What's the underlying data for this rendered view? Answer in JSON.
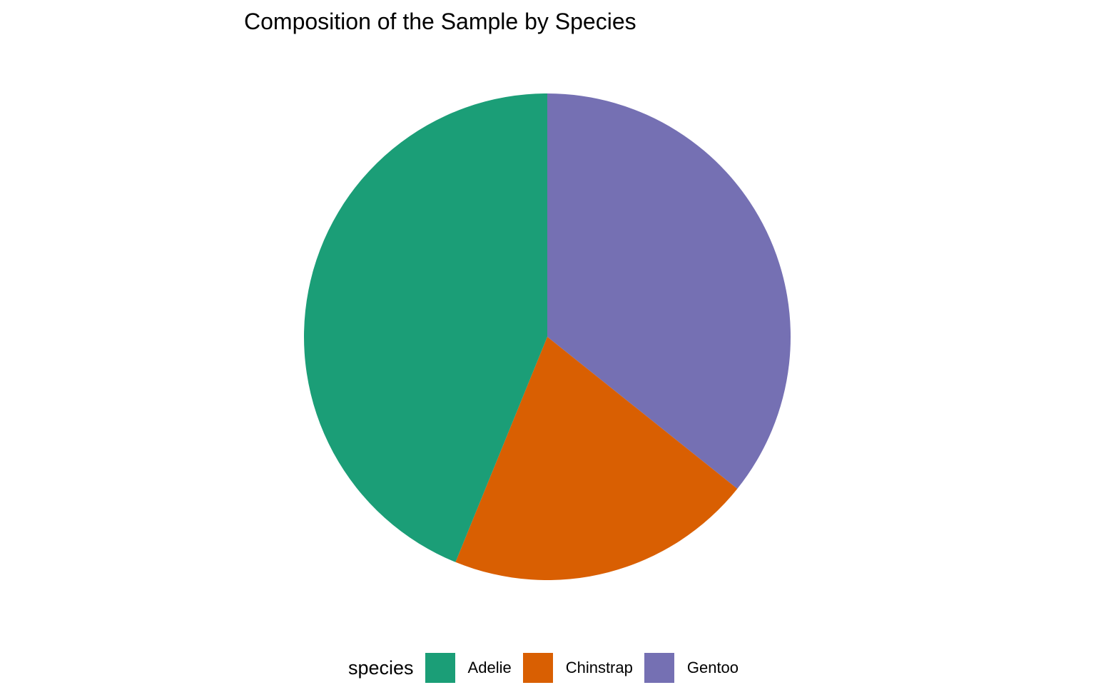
{
  "chart_data": {
    "type": "pie",
    "title": "Composition of the Sample by Species",
    "legend_title": "species",
    "legend_position": "bottom",
    "categories": [
      "Adelie",
      "Chinstrap",
      "Gentoo"
    ],
    "values": [
      146,
      68,
      119
    ],
    "colors": [
      "#1b9e77",
      "#d95f02",
      "#7570b3"
    ],
    "start_angle": "12 o'clock, clockwise: Gentoo, Chinstrap, Adelie"
  }
}
